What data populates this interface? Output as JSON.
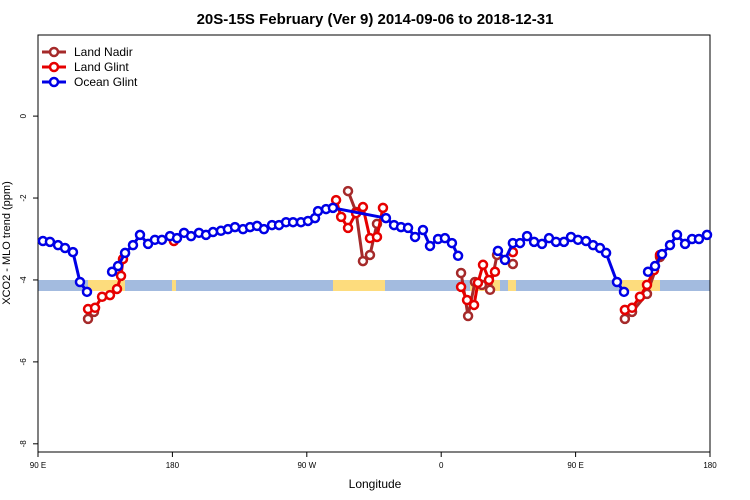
{
  "chart_data": {
    "type": "line",
    "title": "20S-15S February (Ver 9)   2014-09-06 to 2018-12-31",
    "xlabel": "Longitude",
    "ylabel": "XCO2 - MLO trend (ppm)",
    "xlim": [
      90,
      540
    ],
    "ylim": [
      -8.2,
      1.98
    ],
    "xticks": [
      {
        "value": 90,
        "label": "90 E"
      },
      {
        "value": 180,
        "label": "180"
      },
      {
        "value": 270,
        "label": "90 W"
      },
      {
        "value": 360,
        "label": "0"
      },
      {
        "value": 450,
        "label": "90 E"
      },
      {
        "value": 540,
        "label": "180"
      }
    ],
    "yticks": [
      0,
      -2,
      -4,
      -6,
      -8
    ],
    "legend": "upper left",
    "series": [
      {
        "name": "Land Nadir",
        "color": "#a52a2a",
        "x": [
          123.5,
          127.5,
          null,
          297.6,
          303,
          307.6,
          312.3,
          317,
          null,
          373.3,
          378,
          382.6,
          387.3,
          392.7,
          397.4,
          408,
          null,
          483,
          487.8,
          497.8,
          506.5
        ],
        "values": [
          -4.95,
          -4.78,
          null,
          -1.83,
          -2.34,
          -3.54,
          -3.39,
          -2.63,
          null,
          -3.83,
          -4.88,
          -4.05,
          -4.12,
          -4.24,
          -3.39,
          -3.61,
          null,
          -4.95,
          -4.78,
          -4.34,
          -3.44
        ]
      },
      {
        "name": "Land Glint",
        "color": "#e60000",
        "x": [
          123.5,
          128.2,
          132.9,
          138.2,
          142.9,
          145.6,
          146.9,
          null,
          181,
          null,
          289.6,
          293,
          297.6,
          303,
          307.6,
          312.3,
          317,
          321,
          null,
          373.3,
          377.3,
          382,
          384.6,
          388,
          392,
          396,
          null,
          408,
          null,
          483,
          487.8,
          493.1,
          497.8,
          502.5,
          506.5
        ],
        "values": [
          -4.71,
          -4.68,
          -4.41,
          -4.37,
          -4.22,
          -3.9,
          -3.49,
          null,
          -3.05,
          null,
          -2.05,
          -2.46,
          -2.73,
          -2.37,
          -2.22,
          -2.98,
          -2.95,
          -2.24,
          null,
          -4.17,
          -4.49,
          -4.61,
          -4.07,
          -3.63,
          -4.0,
          -3.8,
          null,
          -3.32,
          null,
          -4.73,
          -4.68,
          -4.41,
          -4.12,
          -3.76,
          -3.39
        ]
      },
      {
        "name": "Ocean Glint",
        "color": "#0000e6",
        "x": [
          93.3,
          98,
          103.4,
          108.1,
          113.4,
          118.1,
          122.8,
          null,
          139.6,
          143.6,
          148.3,
          153.6,
          158.3,
          163.7,
          168.3,
          173,
          178.4,
          183.1,
          187.8,
          192.5,
          197.8,
          202.5,
          207.2,
          212.5,
          217.2,
          221.9,
          227.3,
          232,
          236.7,
          241.3,
          246.7,
          251.4,
          256.1,
          260.8,
          266.1,
          270.8,
          275.5,
          277.5,
          282.9,
          287.5,
          323,
          328.4,
          333.1,
          337.8,
          342.5,
          347.8,
          352.5,
          357.9,
          362.5,
          367.2,
          371.3,
          null,
          398,
          402.7,
          408,
          412.8,
          417.5,
          422.2,
          427.5,
          432.2,
          436.9,
          442.2,
          446.9,
          451.6,
          457,
          461.7,
          466.3,
          470.4,
          477.7,
          482.4,
          null,
          498.5,
          503.2,
          507.9,
          513.2,
          517.9,
          523.3,
          528,
          532.6,
          538
        ],
        "values": [
          -3.05,
          -3.07,
          -3.15,
          -3.22,
          -3.32,
          -4.05,
          -4.29,
          null,
          -3.8,
          -3.66,
          -3.34,
          -3.15,
          -2.9,
          -3.12,
          -3.02,
          -3.02,
          -2.93,
          -2.98,
          -2.85,
          -2.93,
          -2.85,
          -2.9,
          -2.83,
          -2.8,
          -2.76,
          -2.71,
          -2.76,
          -2.71,
          -2.68,
          -2.76,
          -2.66,
          -2.66,
          -2.59,
          -2.59,
          -2.59,
          -2.56,
          -2.49,
          -2.32,
          -2.27,
          -2.24,
          -2.49,
          -2.66,
          -2.71,
          -2.73,
          -2.95,
          -2.78,
          -3.17,
          -3.0,
          -2.98,
          -3.1,
          -3.41,
          null,
          -3.29,
          -3.51,
          -3.1,
          -3.1,
          -2.93,
          -3.07,
          -3.12,
          -2.98,
          -3.07,
          -3.07,
          -2.95,
          -3.02,
          -3.05,
          -3.15,
          -3.22,
          -3.34,
          -4.05,
          -4.29,
          null,
          -3.8,
          -3.66,
          -3.37,
          -3.15,
          -2.9,
          -3.12,
          -3.0,
          -3.0,
          -2.9
        ]
      }
    ]
  }
}
